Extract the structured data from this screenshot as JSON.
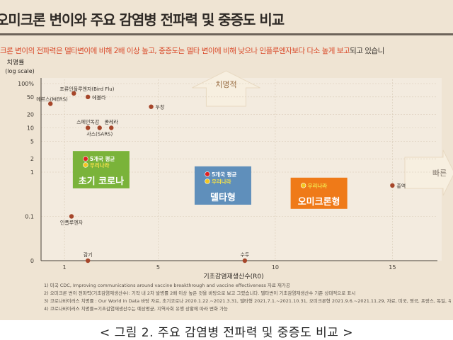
{
  "header": {
    "title": "오미크론 변이와 주요 감염병 전파력 및 중증도 비교",
    "subtitle_main": "크론 변이의 전파력은 델타변이에 비해 2배 이상 높고, 중증도는 델타 변이에 비해 낮으나 인플루엔자보다 다소 높게 보고",
    "subtitle_tail": "되고 있습니"
  },
  "chart_data": {
    "type": "scatter",
    "ylabel_line1": "치명률",
    "ylabel_line2": "(log scale)",
    "xlabel": "기초감염재생산수(R0)",
    "x_ticks": [
      {
        "value": 1,
        "label": "1"
      },
      {
        "value": 5,
        "label": "5"
      },
      {
        "value": 10,
        "label": "10"
      },
      {
        "value": 15,
        "label": "15"
      }
    ],
    "y_ticks": [
      {
        "value": 100,
        "label": "100%"
      },
      {
        "value": 50,
        "label": "50"
      },
      {
        "value": 20,
        "label": "20"
      },
      {
        "value": 10,
        "label": "10"
      },
      {
        "value": 5,
        "label": "5"
      },
      {
        "value": 2,
        "label": "2"
      },
      {
        "value": 1,
        "label": "1"
      },
      {
        "value": 0.1,
        "label": "0.1"
      },
      {
        "value": 0.01,
        "label": "0"
      }
    ],
    "xlim": [
      0,
      16.5
    ],
    "ylim_log": [
      0.01,
      100
    ],
    "direction_labels": {
      "up": "치명적",
      "right": "빠른"
    },
    "points": [
      {
        "label": "메르스(MERS)",
        "x": 0.4,
        "y": 35,
        "label_side": "right-up",
        "color": "#a6462a"
      },
      {
        "label": "조류인플루엔자(Bird Flu)",
        "x": 1.4,
        "y": 60,
        "label_side": "right-up",
        "color": "#a6462a"
      },
      {
        "label": "에볼라",
        "x": 2.0,
        "y": 50,
        "label_side": "right",
        "color": "#a6462a"
      },
      {
        "label": "두창",
        "x": 4.7,
        "y": 30,
        "label_side": "right",
        "color": "#a6462a"
      },
      {
        "label": "스페인독감",
        "x": 2.0,
        "y": 10,
        "label_side": "up",
        "color": "#a6462a"
      },
      {
        "label": "콜레라",
        "x": 3.0,
        "y": 10,
        "label_side": "up",
        "color": "#a6462a"
      },
      {
        "label": "사스(SARS)",
        "x": 2.5,
        "y": 10,
        "label_side": "down",
        "color": "#a6462a"
      },
      {
        "label": "인플루엔자",
        "x": 1.3,
        "y": 0.1,
        "label_side": "down",
        "color": "#a6462a"
      },
      {
        "label": "감기",
        "x": 2.0,
        "y": 0.01,
        "label_side": "up",
        "color": "#a6462a"
      },
      {
        "label": "수두",
        "x": 8.7,
        "y": 0.01,
        "label_side": "up",
        "color": "#a6462a"
      },
      {
        "label": "홍역",
        "x": 15.0,
        "y": 0.5,
        "label_side": "right",
        "color": "#a6462a"
      }
    ],
    "groups": [
      {
        "name": "초기 코로나",
        "box_color": "#7ab33a",
        "entries": [
          {
            "label": "5개국 평균",
            "marker_color": "#e02222",
            "text_color": "#ffffff",
            "x": 1.9,
            "y": 2.0
          },
          {
            "label": "우리나라",
            "marker_color": "#f3c620",
            "text_color": "#f3e04a",
            "x": 1.9,
            "y": 1.45
          }
        ]
      },
      {
        "name": "델타형",
        "box_color": "#5f8fbb",
        "entries": [
          {
            "label": "5개국 평균",
            "marker_color": "#e02222",
            "text_color": "#ffffff",
            "x": 7.1,
            "y": 0.9
          },
          {
            "label": "우리나라",
            "marker_color": "#f3c620",
            "text_color": "#f3e04a",
            "x": 7.1,
            "y": 0.62
          }
        ]
      },
      {
        "name": "오미크론형",
        "box_color": "#ef7a18",
        "entries": [
          {
            "label": "우리나라",
            "marker_color": "#f3c620",
            "text_color": "#f3e04a",
            "x": 11.2,
            "y": 0.5
          }
        ]
      }
    ]
  },
  "notes": [
    "1) 미국 CDC, Improving communications around vaccine breakthrough and vaccine effectiveness 자료 재가공",
    "2) 오미크론 변이 전파력(기초감염재생산수): 기작 내 2차 발병률 2배 이상 높은 것을 바탕으로 보고 그렸습니다. 델타변이 기초감염재생산수 기준 상대적으로 표시",
    "3) 코로나바이러스 치명률 : Our World in Data 바탕 자료, 초기코로나 2020.1.22.~2021.3.31, 델타형 2021.7.1.~2021.10.31, 오미크론형 2021.9.6.~2021.11.29, 자료, 미국, 영국, 프랑스, 독일, 우리나라의 치명",
    "4) 코로나바이러스 치명률=기초감염재생산수는 예상평균, 지역사회 유행 상황에 따라 변화 가능"
  ],
  "caption": "< 그림 2. 주요 감염병 전파력 및 중증도 비교 >"
}
